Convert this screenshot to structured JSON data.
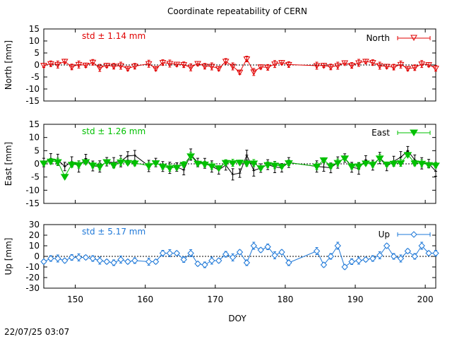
{
  "title": "Coordinate repeatability of CERN",
  "timestamp": "22/07/25 03:07",
  "chart_data": [
    {
      "type": "line",
      "ylabel": "North [mm]",
      "legend": "North",
      "legend_position": "top-right",
      "std_label": "std ± 1.14 mm",
      "color": "#e00000",
      "ylim": [
        -15,
        15
      ],
      "yticks": [
        "15",
        "10",
        "5",
        "0",
        "-5",
        "-10",
        "-15"
      ],
      "x": [
        145.5,
        146.5,
        147.5,
        148.5,
        149.5,
        150.5,
        151.5,
        152.5,
        153.5,
        154.5,
        155.5,
        156.5,
        157.5,
        158.5,
        160.5,
        161.5,
        162.5,
        163.5,
        164.5,
        165.5,
        166.5,
        167.5,
        168.5,
        169.5,
        170.5,
        171.5,
        172.5,
        173.5,
        174.5,
        175.5,
        176.5,
        177.5,
        178.5,
        179.5,
        180.5,
        184.5,
        185.5,
        186.5,
        187.5,
        188.5,
        189.5,
        190.5,
        191.5,
        192.5,
        193.5,
        194.5,
        195.5,
        196.5,
        197.5,
        198.5,
        199.5,
        200.5,
        201.5
      ],
      "values": [
        -0.2,
        0.5,
        0.2,
        1.5,
        -0.8,
        0.2,
        -0.1,
        1.1,
        -1.2,
        -0.2,
        -0.5,
        -0.3,
        -1.5,
        -0.5,
        0.5,
        -1.5,
        1.0,
        0.6,
        0.3,
        0.1,
        -1.0,
        0.6,
        -0.5,
        -0.6,
        -1.5,
        1.5,
        -0.6,
        -3.0,
        2.5,
        -2.9,
        -0.8,
        -1.0,
        0.4,
        1.0,
        0.2,
        -0.3,
        -0.2,
        -0.8,
        -0.3,
        0.9,
        -0.2,
        0.9,
        1.5,
        1.0,
        -0.3,
        -0.6,
        -0.9,
        0.2,
        -1.5,
        -1.1,
        0.4,
        0.1,
        -1.4
      ]
    },
    {
      "type": "line",
      "ylabel": "East [mm]",
      "legend": "East",
      "legend_position": "top-right",
      "std_label": "std ± 1.26 mm",
      "color": "#00c000",
      "ylim": [
        -15,
        15
      ],
      "yticks": [
        "15",
        "10",
        "5",
        "0",
        "-5",
        "-10",
        "-15"
      ],
      "x": [
        145.5,
        146.5,
        147.5,
        148.5,
        149.5,
        150.5,
        151.5,
        152.5,
        153.5,
        154.5,
        155.5,
        156.5,
        157.5,
        158.5,
        160.5,
        161.5,
        162.5,
        163.5,
        164.5,
        165.5,
        166.5,
        167.5,
        168.5,
        169.5,
        170.5,
        171.5,
        172.5,
        173.5,
        174.5,
        175.5,
        176.5,
        177.5,
        178.5,
        179.5,
        180.5,
        184.5,
        185.5,
        186.5,
        187.5,
        188.5,
        189.5,
        190.5,
        191.5,
        192.5,
        193.5,
        194.5,
        195.5,
        196.5,
        197.5,
        198.5,
        199.5,
        200.5,
        201.5
      ],
      "values": [
        0.3,
        1.0,
        0.8,
        -4.8,
        -0.2,
        -0.3,
        0.8,
        -0.5,
        -1.0,
        0.8,
        -0.5,
        0.7,
        0.5,
        0.3,
        -0.7,
        0.4,
        -1.0,
        -1.5,
        -1.3,
        -0.2,
        3.0,
        0.2,
        -0.1,
        -0.8,
        -1.5,
        0.5,
        0.4,
        0.6,
        0.2,
        0.3,
        -1.5,
        -0.3,
        -0.5,
        -0.9,
        0.4,
        -0.9,
        1.5,
        -0.8,
        0.5,
        2.2,
        -0.9,
        -0.8,
        0.3,
        -0.2,
        2.2,
        -0.1,
        0.2,
        0.4,
        3.5,
        0.3,
        0.2,
        -0.3,
        -0.5
      ],
      "values_black": [
        0.5,
        2.0,
        1.5,
        -1.0,
        0.8,
        -1.0,
        2.0,
        -0.8,
        -1.0,
        0.8,
        0.5,
        1.0,
        3.0,
        3.2,
        -0.8,
        0.5,
        -1.0,
        -1.5,
        -1.2,
        -2.3,
        3.5,
        0.5,
        0.2,
        -1.0,
        -2.3,
        -0.5,
        -4.0,
        -3.5,
        3.3,
        -2.5,
        -1.6,
        -0.3,
        -1.2,
        -1.5,
        0.5,
        -1.0,
        -1.2,
        -1.5,
        0.5,
        2.2,
        -1.3,
        -1.8,
        1.5,
        -0.5,
        2.2,
        -1.0,
        1.0,
        2.5,
        5.0,
        1.5,
        0.2,
        0.1,
        -2.8
      ]
    },
    {
      "type": "line",
      "ylabel": "Up [mm]",
      "legend": "Up",
      "legend_position": "top-right",
      "std_label": "std ± 5.17 mm",
      "color": "#1e78d8",
      "ylim": [
        -30,
        30
      ],
      "yticks": [
        "30",
        "20",
        "10",
        "0",
        "-10",
        "-20",
        "-30"
      ],
      "x": [
        145.5,
        146.5,
        147.5,
        148.5,
        149.5,
        150.5,
        151.5,
        152.5,
        153.5,
        154.5,
        155.5,
        156.5,
        157.5,
        158.5,
        160.5,
        161.5,
        162.5,
        163.5,
        164.5,
        165.5,
        166.5,
        167.5,
        168.5,
        169.5,
        170.5,
        171.5,
        172.5,
        173.5,
        174.5,
        175.5,
        176.5,
        177.5,
        178.5,
        179.5,
        180.5,
        184.5,
        185.5,
        186.5,
        187.5,
        188.5,
        189.5,
        190.5,
        191.5,
        192.5,
        193.5,
        194.5,
        195.5,
        196.5,
        197.5,
        198.5,
        199.5,
        200.5,
        201.5
      ],
      "values": [
        -5,
        -2,
        -2,
        -4,
        -1,
        -1,
        -1,
        -2,
        -4,
        -5,
        -6,
        -3,
        -5,
        -4,
        -5,
        -5,
        3,
        3,
        3,
        -3,
        3,
        -7,
        -8,
        -4,
        -4,
        2,
        -1,
        4,
        -6,
        10,
        6,
        9,
        1,
        4,
        -6,
        5,
        -8,
        0,
        10,
        -10,
        -5,
        -4,
        -3,
        -2,
        1,
        10,
        0,
        -2,
        5,
        0,
        10,
        3,
        3
      ]
    }
  ],
  "x_axis": {
    "label": "DOY",
    "xlim": [
      145.5,
      201.5
    ],
    "ticks": [
      "150",
      "160",
      "170",
      "180",
      "190",
      "200"
    ]
  }
}
